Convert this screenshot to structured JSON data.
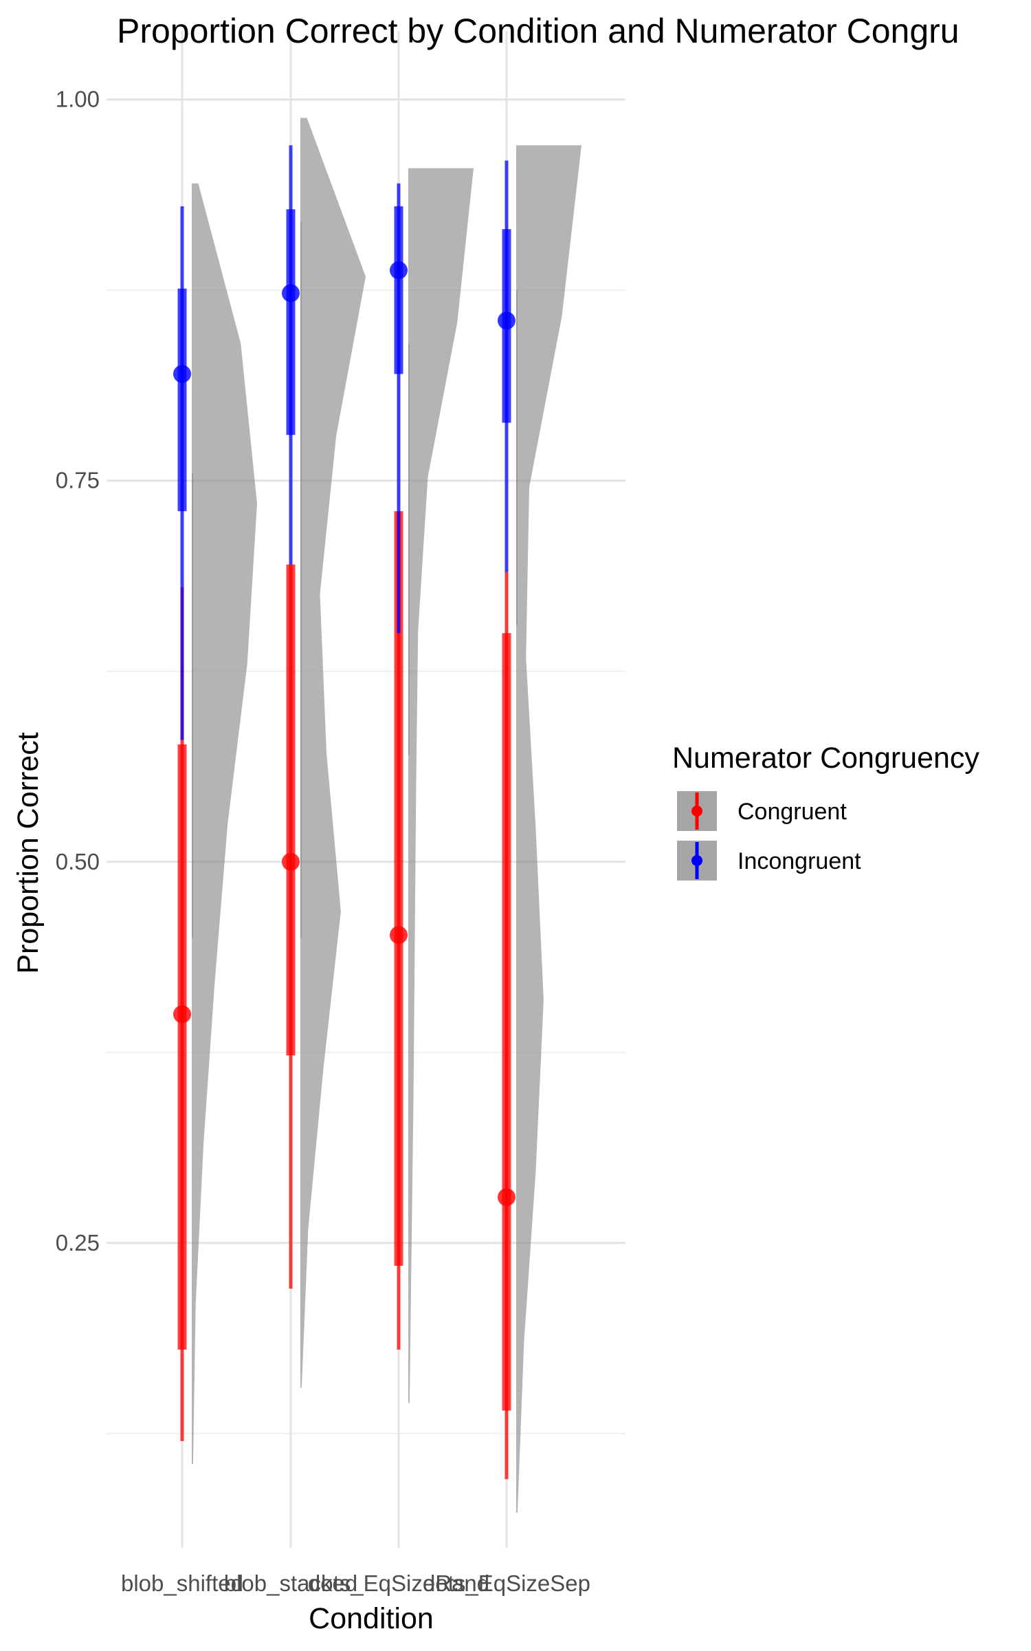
{
  "chart_data": {
    "type": "raincloud",
    "title": "Proportion Correct by Condition and Numerator Congru",
    "xlabel": "Condition",
    "ylabel": "Proportion Correct",
    "categories": [
      "blob_shifted",
      "blob_stacked",
      "dots_EqSizeRand",
      "dots_EqSizeSep"
    ],
    "y_ticks": [
      "0.25",
      "0.50",
      "0.75",
      "1.00"
    ],
    "ylim": [
      0.05,
      1.045
    ],
    "grid": true,
    "legend": {
      "title": "Numerator Congruency",
      "position": "right",
      "entries": [
        "Congruent",
        "Incongruent"
      ]
    },
    "series": [
      {
        "name": "Congruent",
        "color": "#ff0000",
        "points": [
          0.4,
          0.5,
          0.452,
          0.28
        ],
        "inner_interval": [
          [
            0.18,
            0.577
          ],
          [
            0.373,
            0.695
          ],
          [
            0.235,
            0.73
          ],
          [
            0.14,
            0.65
          ]
        ],
        "outer_interval": [
          [
            0.12,
            0.68
          ],
          [
            0.22,
            0.695
          ],
          [
            0.18,
            0.73
          ],
          [
            0.095,
            0.69
          ]
        ]
      },
      {
        "name": "Incongruent",
        "color": "#0000ff",
        "points": [
          0.82,
          0.873,
          0.888,
          0.855
        ],
        "inner_interval": [
          [
            0.73,
            0.876
          ],
          [
            0.78,
            0.928
          ],
          [
            0.82,
            0.93
          ],
          [
            0.788,
            0.915
          ]
        ],
        "outer_interval": [
          [
            0.58,
            0.93
          ],
          [
            0.695,
            0.97
          ],
          [
            0.65,
            0.945
          ],
          [
            0.69,
            0.96
          ]
        ]
      }
    ],
    "densities": [
      [
        {
          "y": [
            0.105,
            0.945
          ],
          "w": [
            0.02,
            0.06,
            0.18,
            0.35,
            0.55,
            0.85,
            1.0,
            0.75,
            0.1
          ]
        },
        {
          "y": [
            0.45,
            0.755
          ],
          "w": [
            0.02,
            0.02,
            0.02,
            0.02,
            0.02,
            0.02,
            0.02,
            0.02,
            0.02
          ]
        }
      ],
      [
        {
          "y": [
            0.155,
            0.988
          ],
          "w": [
            0.02,
            0.12,
            0.35,
            0.62,
            0.4,
            0.3,
            0.55,
            1.0,
            0.1
          ]
        },
        {
          "y": [
            0.45,
            0.92
          ],
          "w": [
            0.02,
            0.02,
            0.02,
            0.02,
            0.02,
            0.02,
            0.02,
            0.02,
            0.02
          ]
        }
      ],
      [
        {
          "y": [
            0.145,
            0.955
          ],
          "w": [
            0.02,
            0.05,
            0.08,
            0.1,
            0.12,
            0.15,
            0.3,
            0.75,
            1.0
          ]
        },
        {
          "y": [
            0.57,
            0.84
          ],
          "w": [
            0.02,
            0.02,
            0.02,
            0.02,
            0.02,
            0.02,
            0.02,
            0.02,
            0.02
          ]
        }
      ],
      [
        {
          "y": [
            0.073,
            0.97
          ],
          "w": [
            0.02,
            0.12,
            0.3,
            0.42,
            0.3,
            0.15,
            0.2,
            0.7,
            1.0
          ]
        },
        {
          "y": [
            0.655,
            0.875
          ],
          "w": [
            0.02,
            0.02,
            0.02,
            0.02,
            0.02,
            0.02,
            0.02,
            0.02,
            0.02
          ]
        }
      ]
    ]
  }
}
